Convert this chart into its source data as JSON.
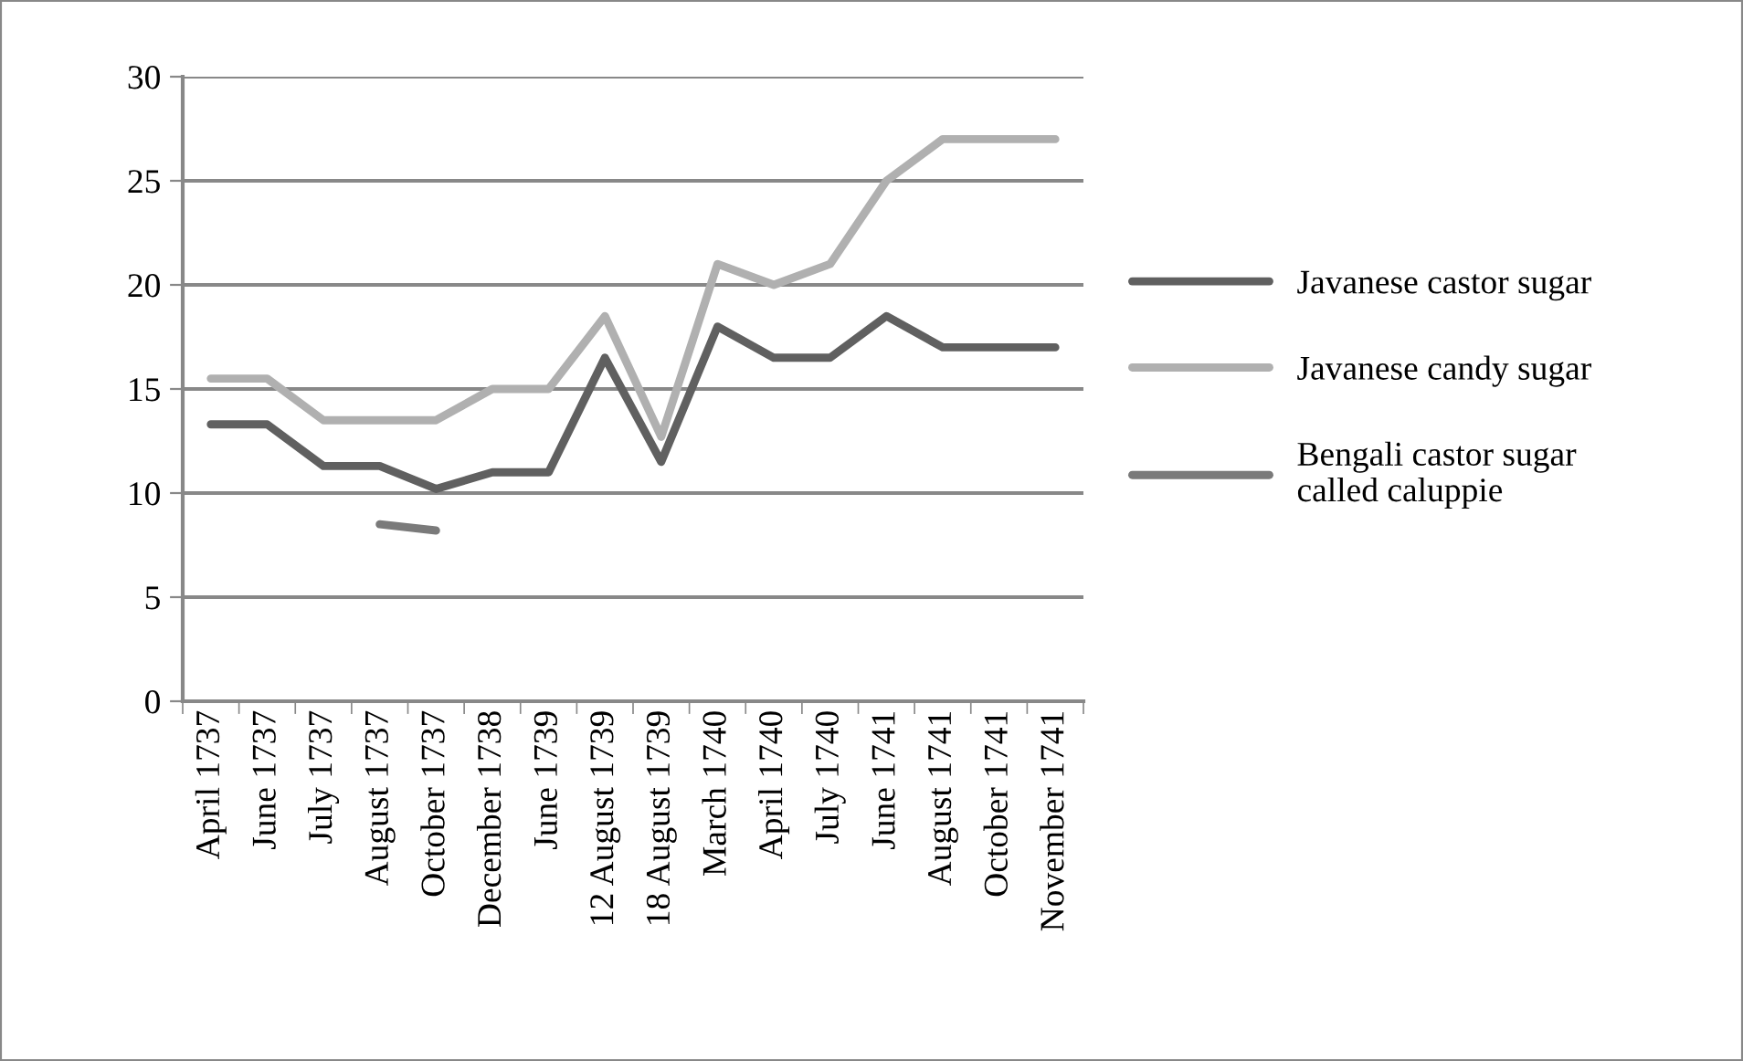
{
  "chart_data": {
    "type": "line",
    "categories": [
      "April 1737",
      "June 1737",
      "July 1737",
      "August 1737",
      "October 1737",
      "December 1738",
      "June 1739",
      "12 August 1739",
      "18 August 1739",
      "March 1740",
      "April 1740",
      "July 1740",
      "June 1741",
      "August 1741",
      "October 1741",
      "November 1741"
    ],
    "series": [
      {
        "name": "Javanese castor sugar",
        "color": "#606060",
        "values": [
          13.3,
          13.3,
          11.3,
          11.3,
          10.2,
          11,
          11,
          16.5,
          11.5,
          18,
          16.5,
          16.5,
          18.5,
          17,
          17,
          17
        ]
      },
      {
        "name": "Javanese candy sugar",
        "color": "#b0b0b0",
        "values": [
          15.5,
          15.5,
          13.5,
          13.5,
          13.5,
          15,
          15,
          18.5,
          12.7,
          21,
          20,
          21,
          25,
          27,
          27,
          27
        ]
      },
      {
        "name": "Bengali castor sugar called caluppie",
        "color": "#7a7a7a",
        "values": [
          null,
          null,
          null,
          8.5,
          8.2,
          null,
          null,
          null,
          null,
          null,
          null,
          null,
          null,
          null,
          null,
          null
        ]
      }
    ],
    "ylim": [
      0,
      30
    ],
    "yticks": [
      0,
      5,
      10,
      15,
      20,
      25,
      30
    ],
    "grid": "y",
    "legend": "right",
    "marker": "none",
    "line_style": "solid"
  }
}
